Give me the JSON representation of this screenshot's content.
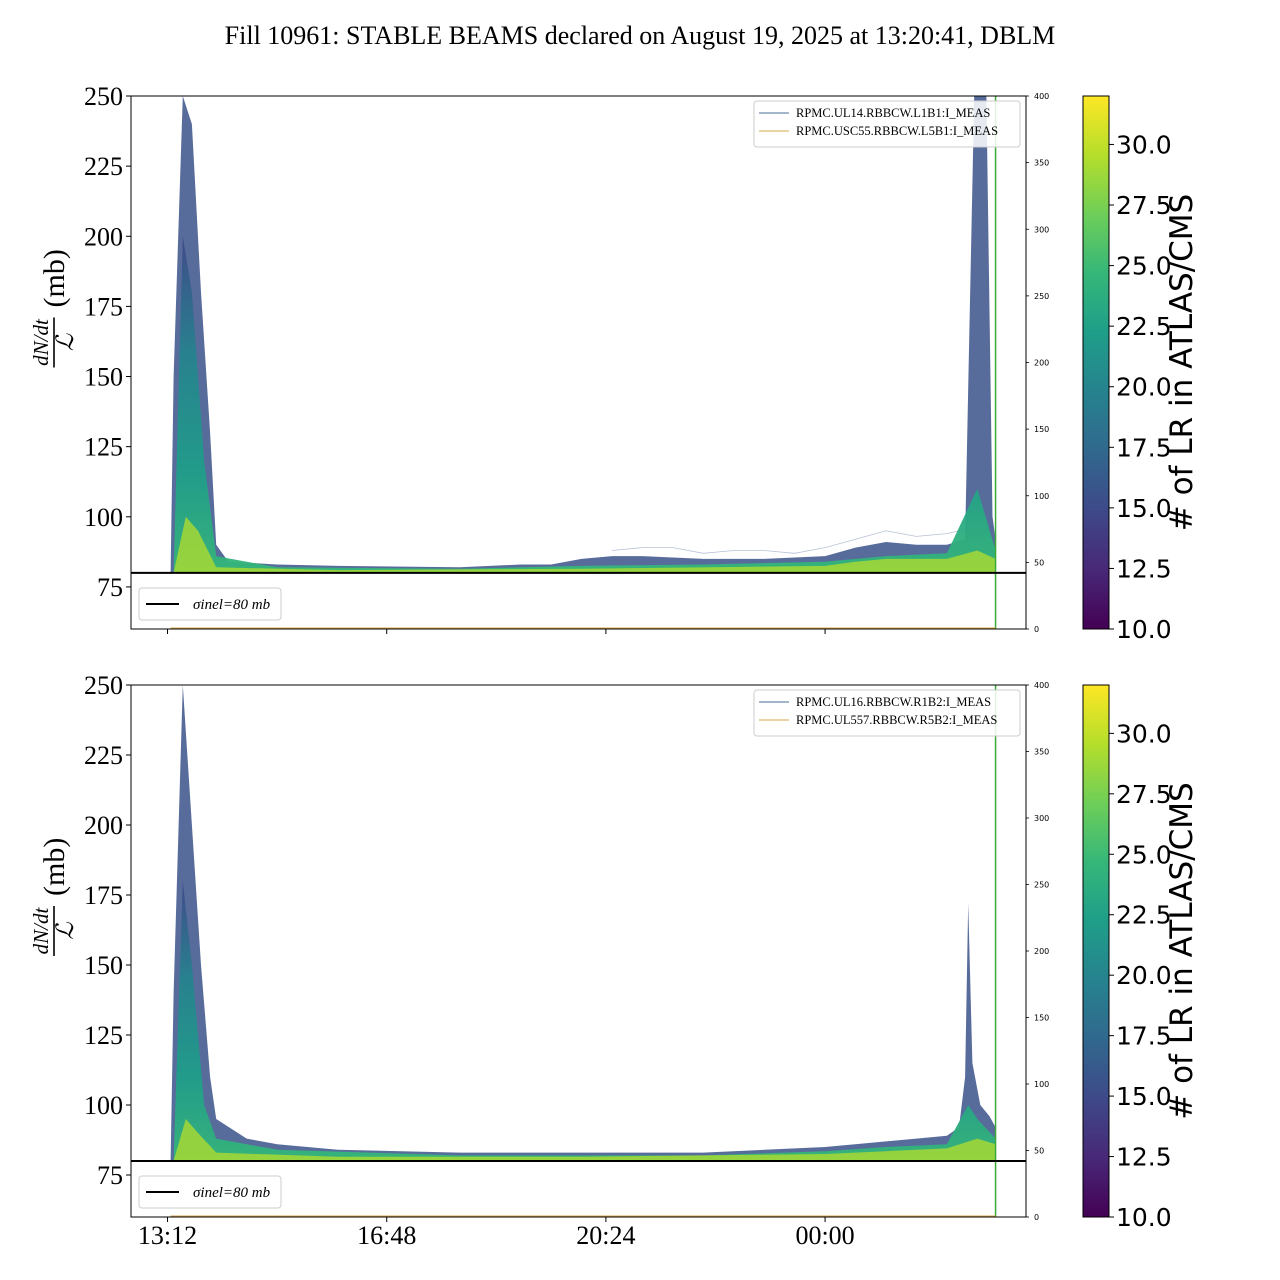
{
  "title": "Fill 10961: STABLE BEAMS declared on August 19, 2025 at 13:20:41, DBLM",
  "colors": {
    "line_blue": "#4a6e9a",
    "line_orange": "#d6a84a",
    "beam_marker": "#3aaa35",
    "sigma_line": "#000000",
    "viridis": [
      "#440154",
      "#482878",
      "#3e4989",
      "#31688e",
      "#26828e",
      "#1f9e89",
      "#35b779",
      "#6ece58",
      "#b5de2b",
      "#fde725"
    ]
  },
  "chart_data": [
    {
      "type": "area",
      "panel": "top",
      "ylabel_num": "dN/dt",
      "ylabel_den": "ℒ",
      "ylabel_unit": "(mb)",
      "ylim": [
        60,
        250
      ],
      "yticks": [
        75,
        100,
        125,
        150,
        175,
        200,
        225,
        250
      ],
      "yticks_right": [
        0,
        50,
        100,
        150,
        200,
        250,
        300,
        350,
        400
      ],
      "ylim_right": [
        0,
        400
      ],
      "xticks": [
        "13:12",
        "16:48",
        "20:24",
        "00:00"
      ],
      "xlim_hours": [
        12.6,
        27.3
      ],
      "xtick_hours": [
        13.2,
        16.8,
        20.4,
        24.0
      ],
      "sigma_inel": 80,
      "sigma_label": "σinel=80 mb",
      "beam_marker_hour": 26.8,
      "legend": [
        "RPMC.UL14.RBBCW.L1B1:I_MEAS",
        "RPMC.USC55.RBBCW.L5B1:I_MEAS"
      ],
      "colorbar": {
        "label": "# of LR in ATLAS/CMS",
        "range": [
          10.0,
          32.0
        ],
        "ticks": [
          "10.0",
          "12.5",
          "15.0",
          "17.5",
          "20.0",
          "22.5",
          "25.0",
          "27.5",
          "30.0"
        ]
      },
      "envelope_upper": [
        [
          13.25,
          80
        ],
        [
          13.3,
          150
        ],
        [
          13.45,
          250
        ],
        [
          13.6,
          240
        ],
        [
          13.75,
          180
        ],
        [
          13.9,
          130
        ],
        [
          14.0,
          90
        ],
        [
          14.2,
          84
        ],
        [
          15.0,
          83
        ],
        [
          16.0,
          82.5
        ],
        [
          18.0,
          82
        ],
        [
          19.0,
          83
        ],
        [
          19.5,
          83
        ],
        [
          20.0,
          85
        ],
        [
          20.5,
          86
        ],
        [
          21.0,
          86
        ],
        [
          22.0,
          85
        ],
        [
          23.0,
          85
        ],
        [
          24.0,
          86
        ],
        [
          24.5,
          89
        ],
        [
          25.0,
          91
        ],
        [
          25.5,
          90
        ],
        [
          26.0,
          90
        ],
        [
          26.3,
          92
        ],
        [
          26.45,
          250
        ],
        [
          26.55,
          250
        ],
        [
          26.65,
          250
        ],
        [
          26.75,
          100
        ],
        [
          26.8,
          92
        ]
      ],
      "envelope_mid": [
        [
          13.3,
          80
        ],
        [
          13.45,
          200
        ],
        [
          13.6,
          180
        ],
        [
          13.8,
          120
        ],
        [
          14.0,
          86
        ],
        [
          15.0,
          82
        ],
        [
          18.0,
          81.5
        ],
        [
          20.0,
          82.5
        ],
        [
          22.0,
          83
        ],
        [
          24.0,
          84
        ],
        [
          25.0,
          86
        ],
        [
          26.0,
          87
        ],
        [
          26.5,
          110
        ],
        [
          26.8,
          88
        ]
      ],
      "envelope_yellow": [
        [
          13.3,
          80
        ],
        [
          13.5,
          100
        ],
        [
          13.7,
          95
        ],
        [
          14.0,
          82
        ],
        [
          16.0,
          81
        ],
        [
          20.0,
          81.5
        ],
        [
          24.0,
          82.5
        ],
        [
          24.5,
          84
        ],
        [
          25.0,
          85
        ],
        [
          26.0,
          85
        ],
        [
          26.5,
          88
        ],
        [
          26.8,
          85
        ]
      ],
      "noise_upper": [
        [
          20.5,
          88
        ],
        [
          21.0,
          89
        ],
        [
          21.5,
          89
        ],
        [
          22.0,
          87
        ],
        [
          22.5,
          88
        ],
        [
          23.0,
          88
        ],
        [
          23.5,
          87
        ],
        [
          24.0,
          89
        ],
        [
          24.5,
          92
        ],
        [
          25.0,
          95
        ],
        [
          25.5,
          93
        ],
        [
          26.0,
          94
        ],
        [
          26.4,
          96
        ]
      ]
    },
    {
      "type": "area",
      "panel": "bottom",
      "ylabel_num": "dN/dt",
      "ylabel_den": "ℒ",
      "ylabel_unit": "(mb)",
      "ylim": [
        60,
        250
      ],
      "yticks": [
        75,
        100,
        125,
        150,
        175,
        200,
        225,
        250
      ],
      "yticks_right": [
        0,
        50,
        100,
        150,
        200,
        250,
        300,
        350,
        400
      ],
      "ylim_right": [
        0,
        400
      ],
      "xticks": [
        "13:12",
        "16:48",
        "20:24",
        "00:00"
      ],
      "xlim_hours": [
        12.6,
        27.3
      ],
      "xtick_hours": [
        13.2,
        16.8,
        20.4,
        24.0
      ],
      "sigma_inel": 80,
      "sigma_label": "σinel=80 mb",
      "beam_marker_hour": 26.8,
      "legend": [
        "RPMC.UL16.RBBCW.R1B2:I_MEAS",
        "RPMC.UL557.RBBCW.R5B2:I_MEAS"
      ],
      "colorbar": {
        "label": "# of LR in ATLAS/CMS",
        "range": [
          10.0,
          32.0
        ],
        "ticks": [
          "10.0",
          "12.5",
          "15.0",
          "17.5",
          "20.0",
          "22.5",
          "25.0",
          "27.5",
          "30.0"
        ]
      },
      "envelope_upper": [
        [
          13.25,
          80
        ],
        [
          13.3,
          140
        ],
        [
          13.45,
          250
        ],
        [
          13.6,
          200
        ],
        [
          13.75,
          150
        ],
        [
          13.9,
          110
        ],
        [
          14.0,
          95
        ],
        [
          14.5,
          88
        ],
        [
          15.0,
          86
        ],
        [
          16.0,
          84
        ],
        [
          18.0,
          83
        ],
        [
          19.0,
          83
        ],
        [
          20.0,
          83
        ],
        [
          22.0,
          83
        ],
        [
          24.0,
          85
        ],
        [
          25.0,
          87
        ],
        [
          25.5,
          88
        ],
        [
          26.0,
          89
        ],
        [
          26.2,
          92
        ],
        [
          26.3,
          110
        ],
        [
          26.35,
          172
        ],
        [
          26.42,
          115
        ],
        [
          26.55,
          100
        ],
        [
          26.7,
          96
        ],
        [
          26.8,
          92
        ]
      ],
      "envelope_mid": [
        [
          13.3,
          80
        ],
        [
          13.45,
          180
        ],
        [
          13.6,
          150
        ],
        [
          13.8,
          100
        ],
        [
          14.0,
          88
        ],
        [
          15.0,
          84
        ],
        [
          18.0,
          82
        ],
        [
          22.0,
          82
        ],
        [
          24.0,
          83.5
        ],
        [
          25.0,
          85
        ],
        [
          26.0,
          86
        ],
        [
          26.35,
          100
        ],
        [
          26.5,
          95
        ],
        [
          26.8,
          88
        ]
      ],
      "envelope_yellow": [
        [
          13.3,
          80
        ],
        [
          13.5,
          95
        ],
        [
          13.7,
          90
        ],
        [
          14.0,
          83
        ],
        [
          16.0,
          81.5
        ],
        [
          20.0,
          81.5
        ],
        [
          24.0,
          82.5
        ],
        [
          25.0,
          83.5
        ],
        [
          26.0,
          84.5
        ],
        [
          26.5,
          88
        ],
        [
          26.8,
          86
        ]
      ],
      "noise_upper": []
    }
  ]
}
